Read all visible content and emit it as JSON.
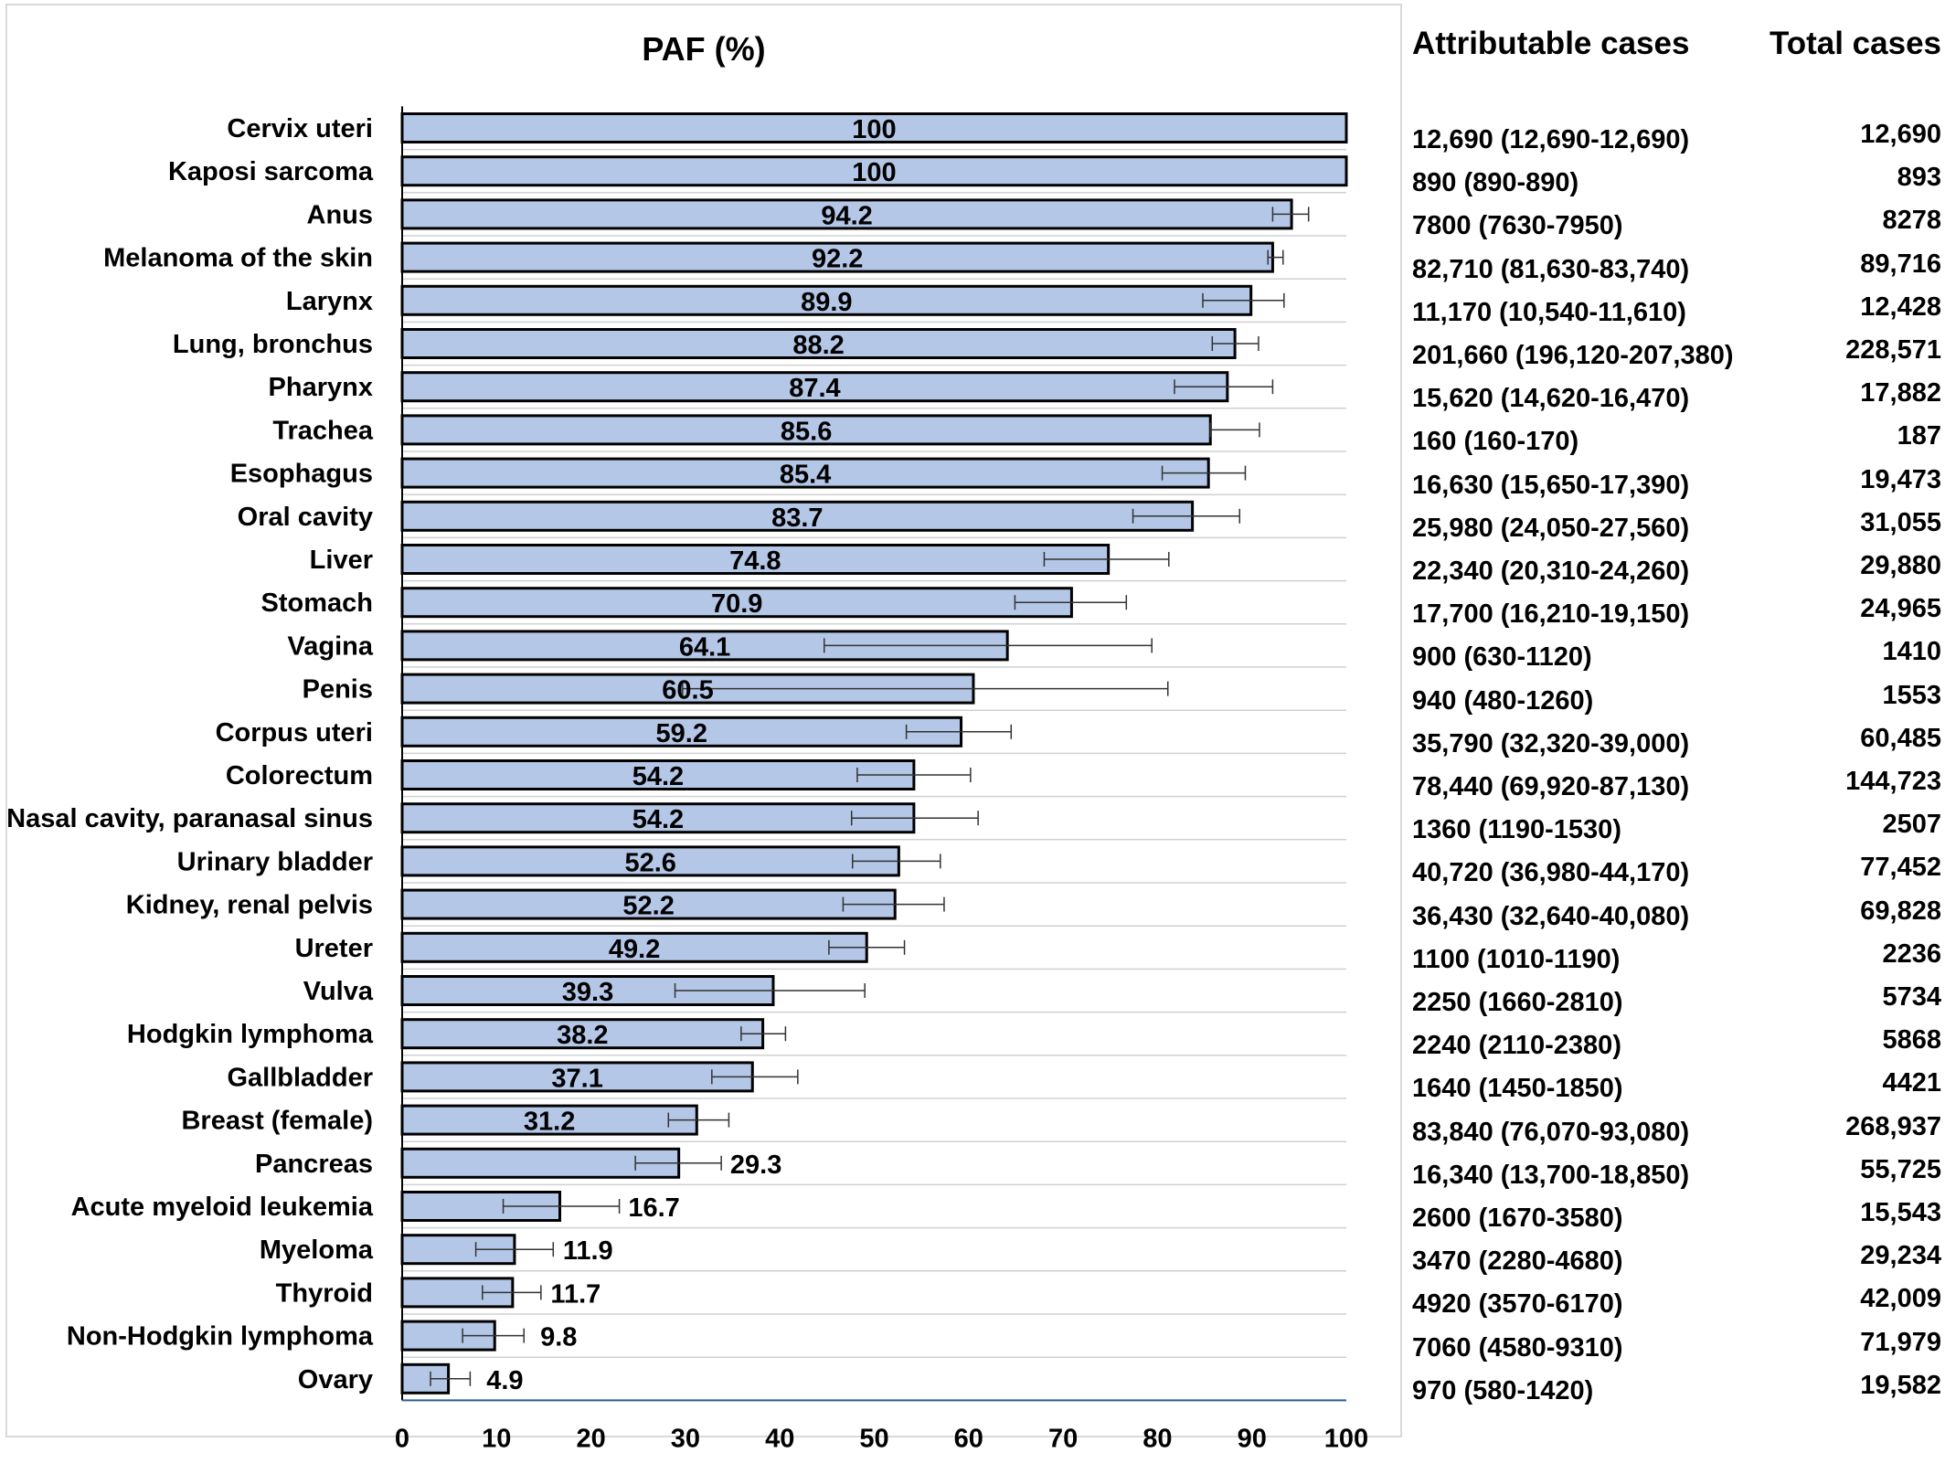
{
  "chart_data": {
    "type": "bar",
    "orientation": "horizontal",
    "title": "PAF (%)",
    "xlabel": "",
    "ylabel": "",
    "xlim": [
      0,
      100
    ],
    "x_ticks": [
      0,
      10,
      20,
      30,
      40,
      50,
      60,
      70,
      80,
      90,
      100
    ],
    "grid": "horizontal row separators",
    "bar_color": "#b4c7e7",
    "bar_edge_color": "#000000",
    "categories": [
      "Cervix uteri",
      "Kaposi sarcoma",
      "Anus",
      "Melanoma of the skin",
      "Larynx",
      "Lung, bronchus",
      "Pharynx",
      "Trachea",
      "Esophagus",
      "Oral cavity",
      "Liver",
      "Stomach",
      "Vagina",
      "Penis",
      "Corpus uteri",
      "Colorectum",
      "Nasal cavity, paranasal sinus",
      "Urinary bladder",
      "Kidney, renal pelvis",
      "Ureter",
      "Vulva",
      "Hodgkin lymphoma",
      "Gallbladder",
      "Breast (female)",
      "Pancreas",
      "Acute myeloid leukemia",
      "Myeloma",
      "Thyroid",
      "Non-Hodgkin lymphoma",
      "Ovary"
    ],
    "values": [
      100,
      100,
      94.2,
      92.2,
      89.9,
      88.2,
      87.4,
      85.6,
      85.4,
      83.7,
      74.8,
      70.9,
      64.1,
      60.5,
      59.2,
      54.2,
      54.2,
      52.6,
      52.2,
      49.2,
      39.3,
      38.2,
      37.1,
      31.2,
      29.3,
      16.7,
      11.9,
      11.7,
      9.8,
      4.9
    ],
    "value_labels": [
      "100",
      "100",
      "94.2",
      "92.2",
      "89.9",
      "88.2",
      "87.4",
      "85.6",
      "85.4",
      "83.7",
      "74.8",
      "70.9",
      "64.1",
      "60.5",
      "59.2",
      "54.2",
      "54.2",
      "52.6",
      "52.2",
      "49.2",
      "39.3",
      "38.2",
      "37.1",
      "31.2",
      "29.3",
      "16.7",
      "11.9",
      "11.7",
      "9.8",
      "4.9"
    ],
    "error_low": [
      100,
      100,
      92.2,
      91.7,
      84.8,
      85.8,
      81.8,
      85.6,
      80.5,
      77.4,
      68.0,
      64.9,
      44.7,
      29.7,
      53.4,
      48.2,
      47.6,
      47.7,
      46.7,
      45.2,
      28.9,
      35.9,
      32.8,
      28.2,
      24.7,
      10.7,
      7.8,
      8.5,
      6.4,
      3.0
    ],
    "error_high": [
      100,
      100,
      96.0,
      93.3,
      93.4,
      90.7,
      92.2,
      90.8,
      89.3,
      88.7,
      81.2,
      76.7,
      79.4,
      81.1,
      64.5,
      60.2,
      61.0,
      57.0,
      57.4,
      53.2,
      49.0,
      40.6,
      41.9,
      34.6,
      33.8,
      23.0,
      16.0,
      14.7,
      12.9,
      7.2
    ],
    "label_inside_threshold": 30
  },
  "table": {
    "attributable_header": "Attributable cases",
    "total_header": "Total cases",
    "attributable": [
      "12,690 (12,690-12,690)",
      "890 (890-890)",
      "7800 (7630-7950)",
      "82,710 (81,630-83,740)",
      "11,170 (10,540-11,610)",
      "201,660 (196,120-207,380)",
      "15,620 (14,620-16,470)",
      "160 (160-170)",
      "16,630 (15,650-17,390)",
      "25,980 (24,050-27,560)",
      "22,340 (20,310-24,260)",
      "17,700 (16,210-19,150)",
      "900 (630-1120)",
      "940 (480-1260)",
      "35,790 (32,320-39,000)",
      "78,440 (69,920-87,130)",
      "1360 (1190-1530)",
      "40,720 (36,980-44,170)",
      "36,430 (32,640-40,080)",
      "1100 (1010-1190)",
      "2250 (1660-2810)",
      "2240 (2110-2380)",
      "1640 (1450-1850)",
      "83,840 (76,070-93,080)",
      "16,340 (13,700-18,850)",
      "2600 (1670-3580)",
      "3470 (2280-4680)",
      "4920 (3570-6170)",
      "7060 (4580-9310)",
      "970 (580-1420)"
    ],
    "total": [
      "12,690",
      "893",
      "8278",
      "89,716",
      "12,428",
      "228,571",
      "17,882",
      "187",
      "19,473",
      "31,055",
      "29,880",
      "24,965",
      "1410",
      "1553",
      "60,485",
      "144,723",
      "2507",
      "77,452",
      "69,828",
      "2236",
      "5734",
      "5868",
      "4421",
      "268,937",
      "55,725",
      "15,543",
      "29,234",
      "42,009",
      "71,979",
      "19,582"
    ]
  }
}
